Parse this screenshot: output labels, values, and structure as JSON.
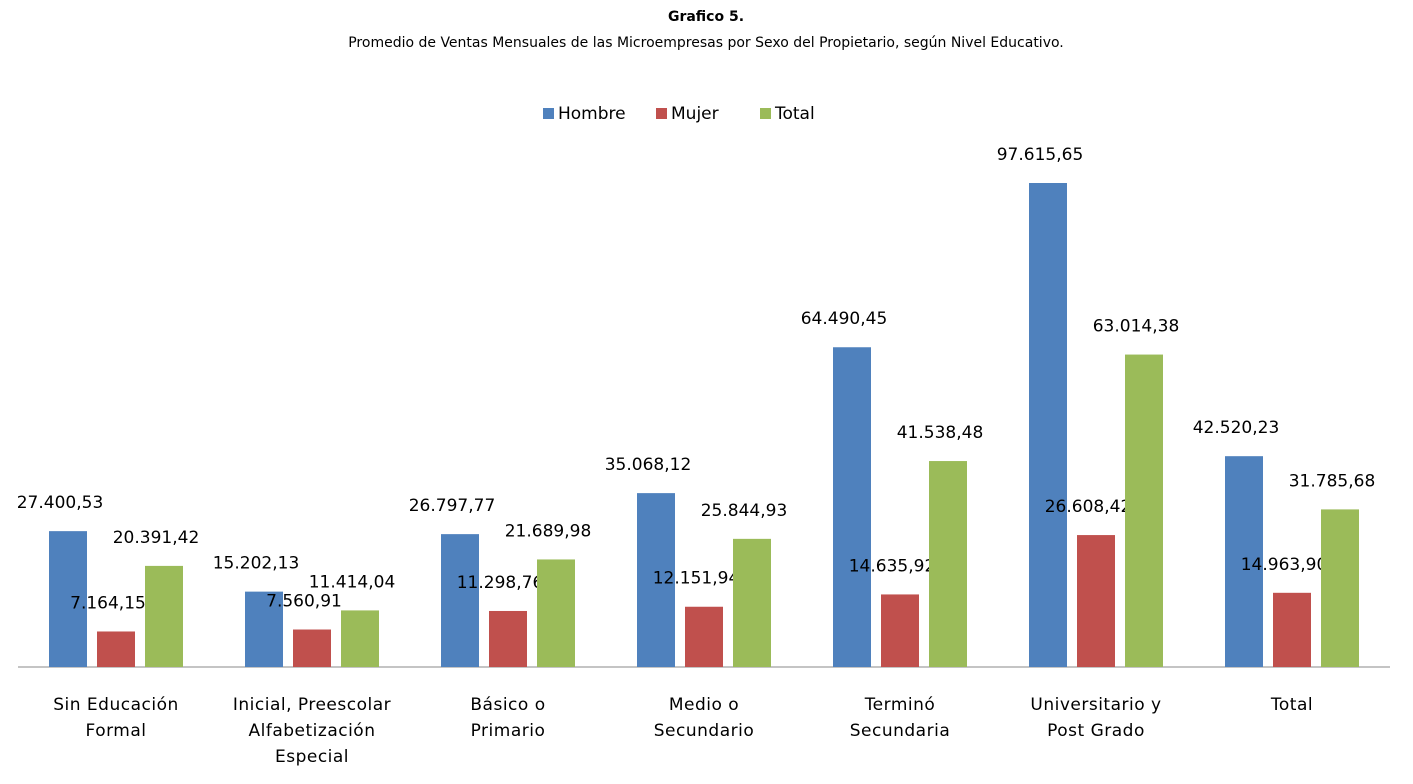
{
  "chart_data": {
    "type": "bar",
    "title": "Grafico 5.",
    "subtitle": "Promedio de Ventas Mensuales de las Microempresas por Sexo del Propietario, según Nivel Educativo.",
    "categories": [
      "Sin Educación\nFormal",
      "Inicial, Preescolar\nAlfabetización\nEspecial",
      "Básico o\nPrimario",
      "Medio o\nSecundario",
      "Terminó\nSecundaria",
      "Universitario y\nPost Grado",
      "Total"
    ],
    "series": [
      {
        "name": "Hombre",
        "color": "#4f81bd",
        "values": [
          27400.53,
          15202.13,
          26797.77,
          35068.12,
          64490.45,
          97615.65,
          42520.23
        ],
        "value_labels": [
          "27.400,53",
          "15.202,13",
          "26.797,77",
          "35.068,12",
          "64.490,45",
          "97.615,65",
          "42.520,23"
        ]
      },
      {
        "name": "Mujer",
        "color": "#c0504d",
        "values": [
          7164.15,
          7560.91,
          11298.76,
          12151.94,
          14635.92,
          26608.42,
          14963.9
        ],
        "value_labels": [
          "7.164,15",
          "7.560,91",
          "11.298,76",
          "12.151,94",
          "14.635,92",
          "26.608,42",
          "14.963,90"
        ]
      },
      {
        "name": "Total",
        "color": "#9bbb59",
        "values": [
          20391.42,
          11414.04,
          21689.98,
          25844.93,
          41538.48,
          63014.38,
          31785.68
        ],
        "value_labels": [
          "20.391,42",
          "11.414,04",
          "21.689,98",
          "25.844,93",
          "41.538,48",
          "63.014,38",
          "31.785,68"
        ]
      }
    ],
    "legend": "top"
  }
}
